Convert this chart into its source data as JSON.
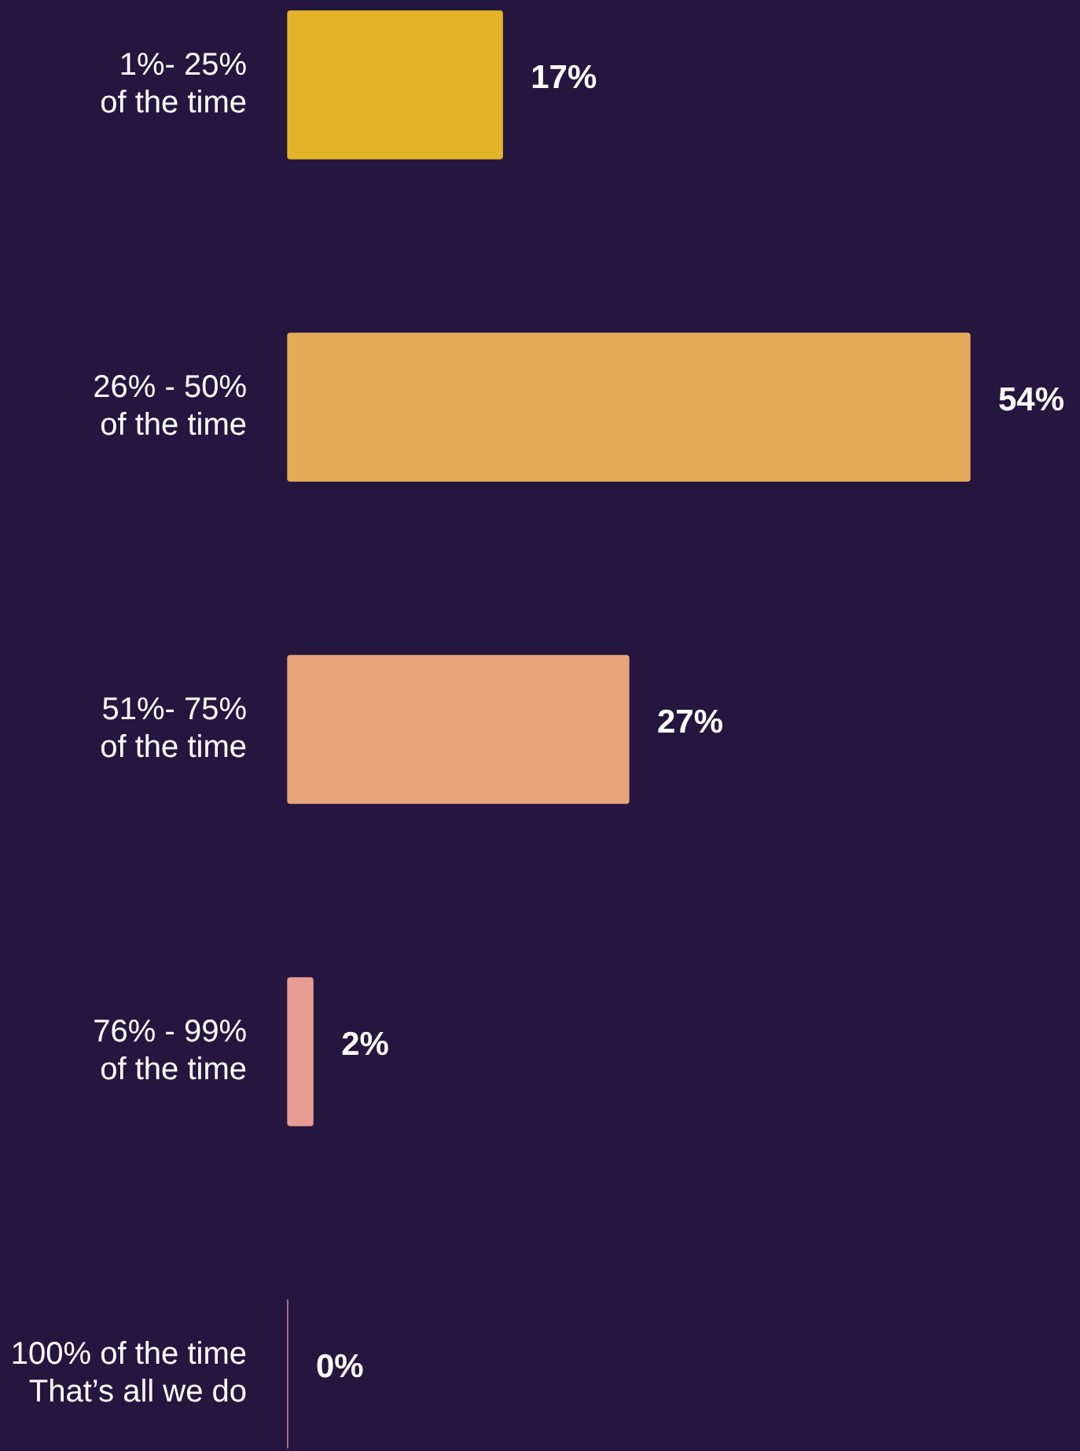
{
  "chart_data": {
    "type": "bar",
    "orientation": "horizontal",
    "categories": [
      "1%- 25%\nof the time",
      "26% - 50%\nof the time",
      "51%- 75%\nof the time",
      "76% - 99%\nof the time",
      "100% of the time\nThat’s all we do"
    ],
    "values": [
      17,
      54,
      27,
      2,
      0
    ],
    "colors": [
      "#e3b427",
      "#e4ab59",
      "#e8a57a",
      "#e89c94",
      "#e89aa8"
    ],
    "value_labels": [
      "17%",
      "54%",
      "27%",
      "2%",
      "0%"
    ],
    "legend": false
  }
}
